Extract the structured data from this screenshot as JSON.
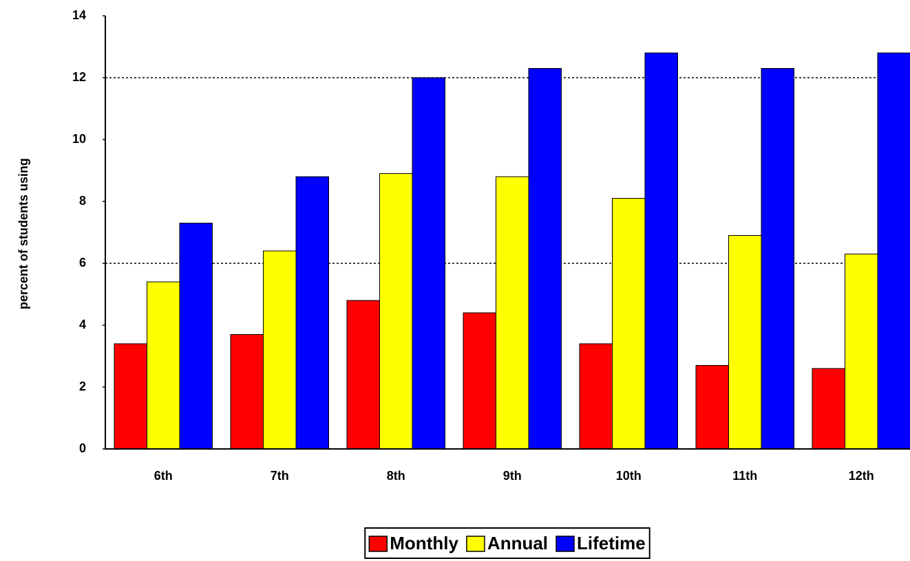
{
  "chart_data": {
    "type": "bar",
    "y_label": "percent of students using",
    "categories": [
      "6th",
      "7th",
      "8th",
      "9th",
      "10th",
      "11th",
      "12th"
    ],
    "series": [
      {
        "name": "Monthly",
        "color": "#ff0000",
        "values": [
          3.4,
          3.7,
          4.8,
          4.4,
          3.4,
          2.7,
          2.6
        ]
      },
      {
        "name": "Annual",
        "color": "#ffff00",
        "values": [
          5.4,
          6.4,
          8.9,
          8.8,
          8.1,
          6.9,
          6.3
        ]
      },
      {
        "name": "Lifetime",
        "color": "#0000ff",
        "values": [
          7.3,
          8.8,
          12.0,
          12.3,
          12.8,
          12.3,
          12.8
        ]
      }
    ],
    "ylim": [
      0,
      14
    ],
    "yticks": [
      0,
      2,
      4,
      6,
      8,
      10,
      12,
      14
    ],
    "gridlines": [
      6,
      12
    ],
    "legend": "bottom"
  }
}
